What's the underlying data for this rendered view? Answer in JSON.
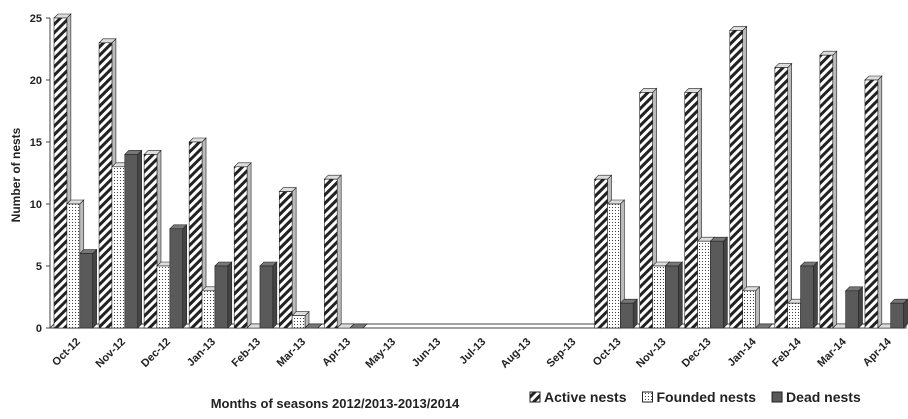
{
  "chart_data": {
    "type": "bar",
    "x_label": "Months of seasons 2012/2013-2013/2014",
    "y_label": "Number  of nests",
    "categories": [
      "Oct-12",
      "Nov-12",
      "Dec-12",
      "Jan-13",
      "Feb-13",
      "Mar-13",
      "Apr-13",
      "May-13",
      "Jun-13",
      "Jul-13",
      "Aug-13",
      "Sep-13",
      "Oct-13",
      "Nov-13",
      "Dec-13",
      "Jan-14",
      "Feb-14",
      "Mar-14",
      "Apr-14"
    ],
    "series": [
      {
        "name": "Active nests",
        "color": "#222222",
        "pattern": "hatch",
        "values": [
          25,
          23,
          14,
          15,
          13,
          11,
          12,
          null,
          null,
          null,
          null,
          null,
          12,
          19,
          19,
          24,
          21,
          22,
          20
        ]
      },
      {
        "name": "Founded nests",
        "color": "#ffffff",
        "pattern": "dots",
        "values": [
          10,
          13,
          5,
          3,
          0,
          1,
          0,
          null,
          null,
          null,
          null,
          null,
          10,
          5,
          7,
          3,
          2,
          0,
          0
        ]
      },
      {
        "name": "Dead nests",
        "color": "#5a5a5a",
        "pattern": "solid",
        "values": [
          6,
          14,
          8,
          5,
          5,
          0,
          0,
          null,
          null,
          null,
          null,
          null,
          2,
          5,
          7,
          0,
          5,
          3,
          2
        ]
      }
    ],
    "ylim": [
      0,
      25
    ],
    "yticks": [
      0,
      5,
      10,
      15,
      20,
      25
    ]
  }
}
